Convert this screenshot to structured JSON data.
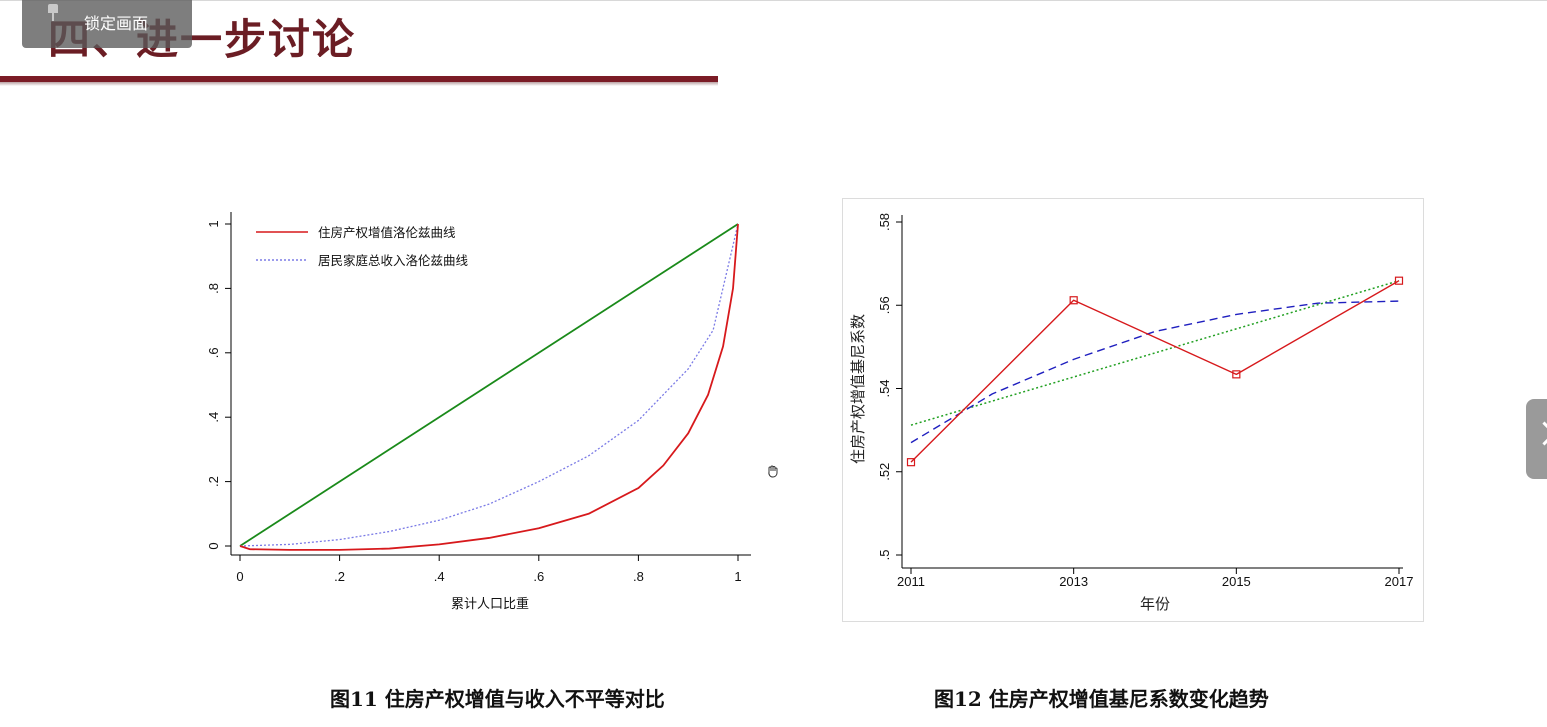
{
  "slide": {
    "title": "四、进一步讨论",
    "lock_label": "锁定画面"
  },
  "captions": {
    "left": "图11  住房产权增值与收入不平等对比",
    "right": "图12  住房产权增值基尼系数变化趋势"
  },
  "icons": {
    "pin": "pin-icon",
    "next": "chevron-right-icon",
    "hand": "hand-cursor-icon"
  },
  "colors": {
    "title": "#6b1d24",
    "rule": "#7b1c26",
    "red": "#d7191c",
    "green": "#1a8a1a",
    "blue_dotted": "#7b7be6",
    "navy_dashed": "#1f1fbf",
    "green_dotted": "#22a022"
  },
  "chart_data": [
    {
      "type": "line",
      "xlabel": "累计人口比重",
      "ylabel": "",
      "xlim": [
        0,
        1
      ],
      "ylim": [
        0,
        1
      ],
      "xticks": [
        "0",
        ".2",
        ".4",
        ".6",
        ".8",
        "1"
      ],
      "yticks": [
        "0",
        ".2",
        ".4",
        ".6",
        ".8",
        "1"
      ],
      "legend_position": "top-left",
      "series": [
        {
          "name": "住房产权增值洛伦兹曲线",
          "style": "solid",
          "color": "#d7191c",
          "x": [
            0,
            0.02,
            0.1,
            0.2,
            0.3,
            0.4,
            0.5,
            0.6,
            0.7,
            0.8,
            0.85,
            0.9,
            0.94,
            0.97,
            0.99,
            1
          ],
          "y": [
            0,
            -0.01,
            -0.012,
            -0.012,
            -0.008,
            0.005,
            0.025,
            0.055,
            0.1,
            0.18,
            0.25,
            0.35,
            0.47,
            0.62,
            0.8,
            1
          ]
        },
        {
          "name": "居民家庭总收入洛伦兹曲线",
          "style": "dotted",
          "color": "#7b7be6",
          "x": [
            0,
            0.1,
            0.2,
            0.3,
            0.4,
            0.5,
            0.6,
            0.7,
            0.8,
            0.9,
            0.95,
            1
          ],
          "y": [
            0,
            0.005,
            0.02,
            0.045,
            0.08,
            0.13,
            0.2,
            0.28,
            0.39,
            0.55,
            0.67,
            1
          ]
        },
        {
          "name": "",
          "style": "solid",
          "color": "#1a8a1a",
          "x": [
            0,
            1
          ],
          "y": [
            0,
            1
          ]
        }
      ]
    },
    {
      "type": "line",
      "xlabel": "年份",
      "ylabel": "住房产权增值基尼系数",
      "xlim": [
        2011,
        2017
      ],
      "ylim": [
        0.5,
        0.58
      ],
      "xticks": [
        "2011",
        "2013",
        "2015",
        "2017"
      ],
      "yticks": [
        ".5",
        ".52",
        ".54",
        ".56",
        ".58"
      ],
      "series": [
        {
          "name": "",
          "style": "solid-markers",
          "color": "#d7191c",
          "x": [
            2011,
            2013,
            2015,
            2017
          ],
          "y": [
            0.5223,
            0.5612,
            0.5434,
            0.5659
          ]
        },
        {
          "name": "",
          "style": "dashed",
          "color": "#1f1fbf",
          "x": [
            2011,
            2012,
            2013,
            2014,
            2015,
            2016,
            2017
          ],
          "y": [
            0.527,
            0.5387,
            0.547,
            0.5537,
            0.5578,
            0.5605,
            0.561
          ]
        },
        {
          "name": "",
          "style": "dotted",
          "color": "#22a022",
          "x": [
            2011,
            2017
          ],
          "y": [
            0.5312,
            0.5659
          ]
        }
      ]
    }
  ]
}
